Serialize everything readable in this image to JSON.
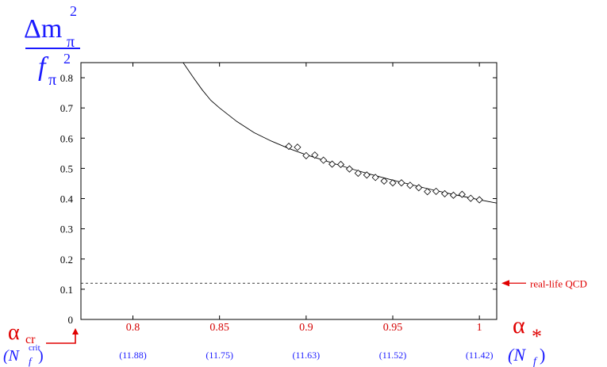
{
  "chart_data": {
    "type": "scatter",
    "ylabel": {
      "numerator": "Δm",
      "numerator_sub": "π",
      "numerator_sup": "2",
      "denominator": "f",
      "denominator_sub": "π",
      "denominator_sup": "2"
    },
    "xlim": [
      0.77,
      1.01
    ],
    "ylim": [
      0,
      0.85
    ],
    "x_ticks": [
      0.8,
      0.85,
      0.9,
      0.95,
      1
    ],
    "x_tick_labels": [
      "0.8",
      "0.85",
      "0.9",
      "0.95",
      "1"
    ],
    "y_ticks": [
      0,
      0.1,
      0.2,
      0.3,
      0.4,
      0.5,
      0.6,
      0.7,
      0.8
    ],
    "y_tick_labels": [
      "0",
      "0.1",
      "0.2",
      "0.3",
      "0.4",
      "0.5",
      "0.6",
      "0.7",
      "0.8"
    ],
    "nf_ticks": [
      0.8,
      0.85,
      0.9,
      0.95,
      1
    ],
    "nf_tick_labels": [
      "(11.88)",
      "(11.75)",
      "(11.63)",
      "(11.52)",
      "(11.42)"
    ],
    "x_axis_label": "α",
    "x_axis_label_sub": "*",
    "nf_axis_label": "(N",
    "nf_axis_label_sub": "f",
    "nf_axis_label_close": ")",
    "acr_label": "α",
    "acr_sub": "cr",
    "acr_nf_label": "(N",
    "acr_nf_sub": "f",
    "acr_nf_sup": "crit",
    "acr_nf_close": ")",
    "reference_line": {
      "y": 0.12,
      "label": "real-life QCD"
    },
    "series": [
      {
        "points": [
          [
            0.89,
            0.573
          ],
          [
            0.895,
            0.57
          ],
          [
            0.9,
            0.542
          ],
          [
            0.905,
            0.544
          ],
          [
            0.91,
            0.527
          ],
          [
            0.915,
            0.514
          ],
          [
            0.92,
            0.513
          ],
          [
            0.925,
            0.498
          ],
          [
            0.93,
            0.484
          ],
          [
            0.935,
            0.478
          ],
          [
            0.94,
            0.47
          ],
          [
            0.945,
            0.458
          ],
          [
            0.95,
            0.452
          ],
          [
            0.955,
            0.452
          ],
          [
            0.96,
            0.444
          ],
          [
            0.965,
            0.436
          ],
          [
            0.97,
            0.423
          ],
          [
            0.975,
            0.424
          ],
          [
            0.98,
            0.416
          ],
          [
            0.985,
            0.411
          ],
          [
            0.99,
            0.414
          ],
          [
            0.995,
            0.401
          ],
          [
            1.0,
            0.396
          ]
        ]
      }
    ],
    "fit_curve": {
      "x": [
        0.829,
        0.835,
        0.84,
        0.845,
        0.85,
        0.86,
        0.87,
        0.88,
        0.89,
        0.9,
        0.91,
        0.92,
        0.93,
        0.94,
        0.95,
        0.96,
        0.97,
        0.98,
        0.99,
        1.0,
        1.01
      ],
      "y": [
        0.85,
        0.8,
        0.76,
        0.725,
        0.7,
        0.655,
        0.618,
        0.59,
        0.566,
        0.545,
        0.527,
        0.509,
        0.492,
        0.476,
        0.461,
        0.447,
        0.433,
        0.42,
        0.408,
        0.396,
        0.385
      ]
    }
  }
}
